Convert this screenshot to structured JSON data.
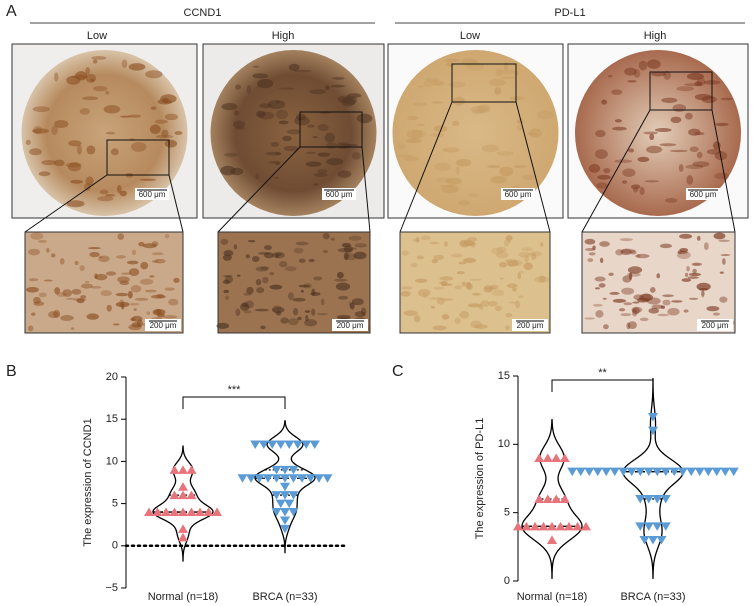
{
  "panel_labels": [
    "A",
    "B",
    "C"
  ],
  "panel_a": {
    "groups": [
      {
        "title": "CCND1",
        "columns": [
          "Low",
          "High"
        ]
      },
      {
        "title": "PD-L1",
        "columns": [
          "Low",
          "High"
        ]
      }
    ],
    "scale_bars": {
      "overview": "600 μm",
      "detail": "200 μm"
    }
  },
  "chart_data": [
    {
      "type": "violin",
      "ylabel": "The expression of CCND1",
      "significance": "***",
      "ylim": [
        -5,
        20
      ],
      "yticks": [
        {
          "value": -5,
          "label": "−5"
        },
        0,
        5,
        10,
        15,
        20
      ],
      "reference_line": 0,
      "series": [
        {
          "name": "Normal (n=18)",
          "color": "#e8737a",
          "marker": "triangle-up",
          "values": [
            9,
            9,
            9,
            7,
            6,
            6,
            6,
            4,
            4,
            4,
            4,
            4,
            4,
            4,
            4,
            4,
            2,
            1
          ]
        },
        {
          "name": "BRCA (n=33)",
          "color": "#5b9bd5",
          "marker": "triangle-down",
          "values": [
            12,
            12,
            12,
            12,
            12,
            12,
            12,
            12,
            9,
            9,
            9,
            8,
            8,
            8,
            8,
            8,
            8,
            8,
            8,
            8,
            8,
            8,
            7,
            6,
            6,
            6,
            5,
            5,
            4,
            4,
            4,
            3,
            2
          ]
        }
      ]
    },
    {
      "type": "violin",
      "ylabel": "The expression of PD-L1",
      "significance": "**",
      "ylim": [
        0,
        15
      ],
      "yticks": [
        0,
        5,
        10,
        15
      ],
      "series": [
        {
          "name": "Normal (n=18)",
          "color": "#e8737a",
          "marker": "triangle-up",
          "values": [
            9,
            9,
            9,
            9,
            6,
            6,
            6,
            6,
            4,
            4,
            4,
            4,
            4,
            4,
            4,
            4,
            4,
            3
          ]
        },
        {
          "name": "BRCA (n=33)",
          "color": "#5b9bd5",
          "marker": "triangle-down",
          "values": [
            12,
            11,
            8,
            8,
            8,
            8,
            8,
            8,
            8,
            8,
            8,
            8,
            8,
            8,
            8,
            8,
            8,
            8,
            8,
            8,
            8,
            8,
            6,
            6,
            6,
            6,
            4,
            4,
            4,
            4,
            3,
            3,
            3
          ]
        }
      ]
    }
  ]
}
